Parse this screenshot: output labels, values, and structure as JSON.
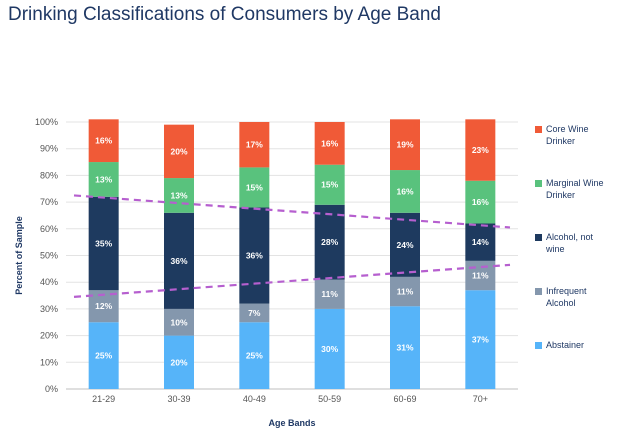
{
  "chart_data": {
    "type": "bar",
    "stacked": true,
    "title": "Drinking Classifications of Consumers by Age Band",
    "xlabel": "Age Bands",
    "ylabel": "Percent of Sample",
    "ylim": [
      0,
      100
    ],
    "yticks": [
      "0%",
      "10%",
      "20%",
      "30%",
      "40%",
      "50%",
      "60%",
      "70%",
      "80%",
      "90%",
      "100%"
    ],
    "categories": [
      "21-29",
      "30-39",
      "40-49",
      "50-59",
      "60-69",
      "70+"
    ],
    "series": [
      {
        "name": "Abstainer",
        "color": "#56b4f9",
        "values": [
          25,
          20,
          25,
          30,
          31,
          37
        ],
        "labels": [
          "25%",
          "20%",
          "25%",
          "30%",
          "31%",
          "37%"
        ],
        "legend_lines": [
          "Abstainer"
        ]
      },
      {
        "name": "Infrequent Alcohol",
        "color": "#8497ad",
        "values": [
          12,
          10,
          7,
          11,
          11,
          11
        ],
        "labels": [
          "12%",
          "10%",
          "7%",
          "11%",
          "11%",
          "11%"
        ],
        "legend_lines": [
          "Infrequent",
          "Alcohol"
        ]
      },
      {
        "name": "Alcohol, not wine",
        "color": "#1e3a5f",
        "values": [
          35,
          36,
          36,
          28,
          24,
          14
        ],
        "labels": [
          "35%",
          "36%",
          "36%",
          "28%",
          "24%",
          "14%"
        ],
        "legend_lines": [
          "Alcohol, not",
          "wine"
        ]
      },
      {
        "name": "Marginal Wine Drinker",
        "color": "#59c27d",
        "values": [
          13,
          13,
          15,
          15,
          16,
          16
        ],
        "labels": [
          "13%",
          "13%",
          "15%",
          "15%",
          "16%",
          "16%"
        ],
        "legend_lines": [
          "Marginal Wine",
          "Drinker"
        ]
      },
      {
        "name": "Core Wine Drinker",
        "color": "#f05a37",
        "values": [
          16,
          20,
          17,
          16,
          19,
          23
        ],
        "labels": [
          "16%",
          "20%",
          "17%",
          "16%",
          "19%",
          "23%"
        ],
        "legend_lines": [
          "Core Wine",
          "Drinker"
        ]
      }
    ],
    "trendlines": [
      {
        "name": "upper-trend",
        "color": "#b65fcf",
        "from_value": 72.5,
        "to_value": 60.5
      },
      {
        "name": "lower-trend",
        "color": "#b65fcf",
        "from_value": 34.5,
        "to_value": 46.5
      }
    ],
    "legend_position": "right"
  }
}
